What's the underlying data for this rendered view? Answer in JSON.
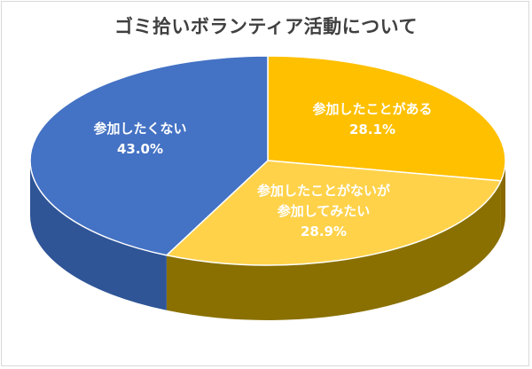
{
  "chart_data": {
    "type": "pie",
    "title": "ゴミ拾いボランティア活動について",
    "slices": [
      {
        "label_lines": [
          "参加したことがある"
        ],
        "value_text": "28.1%",
        "value": 28.1,
        "color": "#FFC000",
        "side_color": "#8A6A00",
        "label_color": "#ffffff"
      },
      {
        "label_lines": [
          "参加したことがないが",
          "参加してみたい"
        ],
        "value_text": "28.9%",
        "value": 28.9,
        "color": "#FFD24A",
        "side_color": "#8A7000",
        "label_color": "#ffffff"
      },
      {
        "label_lines": [
          "参加したくない"
        ],
        "value_text": "43.0%",
        "value": 43.0,
        "color": "#4472C4",
        "side_color": "#2F5597",
        "label_color": "#ffffff"
      }
    ]
  }
}
